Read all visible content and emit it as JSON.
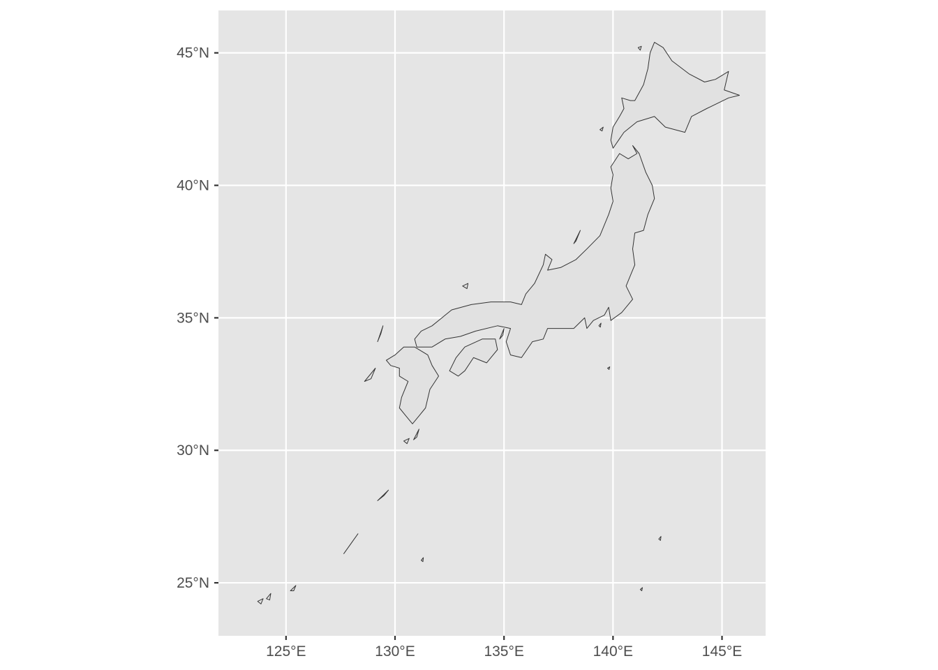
{
  "map": {
    "projection": "longitude-latitude",
    "colors": {
      "panel_background": "#e5e5e5",
      "gridline": "#ffffff",
      "land_fill": "#e1e1e1",
      "coastline": "#333333",
      "tick_text": "#4d4d4d",
      "tick_mark": "#333333"
    },
    "grid": true,
    "axis_ranges": {
      "lon": [
        121.9,
        147.0
      ],
      "lat": [
        23.0,
        46.6
      ]
    },
    "x_axis": {
      "ticks": [
        {
          "value": 125,
          "label": "125°E"
        },
        {
          "value": 130,
          "label": "130°E"
        },
        {
          "value": 135,
          "label": "135°E"
        },
        {
          "value": 140,
          "label": "140°E"
        },
        {
          "value": 145,
          "label": "145°E"
        }
      ]
    },
    "y_axis": {
      "ticks": [
        {
          "value": 25,
          "label": "25°N"
        },
        {
          "value": 30,
          "label": "30°N"
        },
        {
          "value": 35,
          "label": "35°N"
        },
        {
          "value": 40,
          "label": "40°N"
        },
        {
          "value": 45,
          "label": "45°N"
        }
      ]
    },
    "regions": [
      {
        "name": "Hokkaido",
        "coords": [
          [
            141.0,
            43.2
          ],
          [
            141.4,
            43.8
          ],
          [
            141.6,
            44.4
          ],
          [
            141.7,
            45.0
          ],
          [
            141.9,
            45.4
          ],
          [
            142.3,
            45.2
          ],
          [
            142.7,
            44.7
          ],
          [
            143.5,
            44.2
          ],
          [
            144.2,
            43.9
          ],
          [
            144.7,
            44.0
          ],
          [
            145.3,
            44.3
          ],
          [
            145.1,
            43.6
          ],
          [
            145.8,
            43.4
          ],
          [
            145.3,
            43.3
          ],
          [
            144.3,
            42.9
          ],
          [
            143.6,
            42.6
          ],
          [
            143.3,
            42.0
          ],
          [
            142.4,
            42.2
          ],
          [
            141.9,
            42.6
          ],
          [
            141.1,
            42.4
          ],
          [
            140.5,
            42.0
          ],
          [
            140.0,
            41.4
          ],
          [
            139.9,
            41.7
          ],
          [
            140.0,
            42.2
          ],
          [
            140.3,
            42.6
          ],
          [
            140.5,
            42.9
          ],
          [
            140.4,
            43.3
          ],
          [
            140.8,
            43.2
          ],
          [
            141.0,
            43.2
          ]
        ]
      },
      {
        "name": "Honshu",
        "coords": [
          [
            140.9,
            41.5
          ],
          [
            141.2,
            41.2
          ],
          [
            141.5,
            40.5
          ],
          [
            141.8,
            40.0
          ],
          [
            141.9,
            39.5
          ],
          [
            141.6,
            38.9
          ],
          [
            141.4,
            38.3
          ],
          [
            141.0,
            38.2
          ],
          [
            140.9,
            37.6
          ],
          [
            141.0,
            37.0
          ],
          [
            140.8,
            36.6
          ],
          [
            140.6,
            36.2
          ],
          [
            140.9,
            35.7
          ],
          [
            140.4,
            35.2
          ],
          [
            139.9,
            34.9
          ],
          [
            139.8,
            35.4
          ],
          [
            139.6,
            35.1
          ],
          [
            139.1,
            34.9
          ],
          [
            138.8,
            34.6
          ],
          [
            138.7,
            35.0
          ],
          [
            138.2,
            34.6
          ],
          [
            137.0,
            34.6
          ],
          [
            136.8,
            34.2
          ],
          [
            136.3,
            34.1
          ],
          [
            135.8,
            33.5
          ],
          [
            135.3,
            33.6
          ],
          [
            135.1,
            34.1
          ],
          [
            135.3,
            34.6
          ],
          [
            134.7,
            34.7
          ],
          [
            133.7,
            34.5
          ],
          [
            133.0,
            34.3
          ],
          [
            132.3,
            34.2
          ],
          [
            131.7,
            33.9
          ],
          [
            131.0,
            33.9
          ],
          [
            130.9,
            34.2
          ],
          [
            131.2,
            34.5
          ],
          [
            131.7,
            34.7
          ],
          [
            132.6,
            35.3
          ],
          [
            133.5,
            35.5
          ],
          [
            134.4,
            35.6
          ],
          [
            135.3,
            35.6
          ],
          [
            135.8,
            35.5
          ],
          [
            136.0,
            35.9
          ],
          [
            136.4,
            36.3
          ],
          [
            136.8,
            37.0
          ],
          [
            136.9,
            37.4
          ],
          [
            137.2,
            37.2
          ],
          [
            137.0,
            36.8
          ],
          [
            137.6,
            36.9
          ],
          [
            138.3,
            37.2
          ],
          [
            138.8,
            37.6
          ],
          [
            139.4,
            38.1
          ],
          [
            139.8,
            38.9
          ],
          [
            140.0,
            39.4
          ],
          [
            139.9,
            39.9
          ],
          [
            140.0,
            40.4
          ],
          [
            139.9,
            40.7
          ],
          [
            140.3,
            41.2
          ],
          [
            140.7,
            41.0
          ],
          [
            141.1,
            41.2
          ],
          [
            140.9,
            41.5
          ]
        ]
      },
      {
        "name": "Shikoku",
        "coords": [
          [
            132.5,
            33.0
          ],
          [
            132.8,
            33.5
          ],
          [
            133.2,
            33.9
          ],
          [
            134.0,
            34.2
          ],
          [
            134.6,
            34.2
          ],
          [
            134.7,
            33.8
          ],
          [
            134.2,
            33.3
          ],
          [
            133.6,
            33.5
          ],
          [
            133.2,
            33.0
          ],
          [
            132.9,
            32.8
          ],
          [
            132.5,
            33.0
          ]
        ]
      },
      {
        "name": "Kyushu",
        "coords": [
          [
            130.9,
            33.9
          ],
          [
            131.5,
            33.6
          ],
          [
            131.7,
            33.2
          ],
          [
            132.0,
            32.8
          ],
          [
            131.6,
            32.3
          ],
          [
            131.4,
            31.6
          ],
          [
            131.1,
            31.3
          ],
          [
            130.8,
            31.0
          ],
          [
            130.5,
            31.3
          ],
          [
            130.2,
            31.6
          ],
          [
            130.3,
            32.0
          ],
          [
            130.6,
            32.6
          ],
          [
            130.2,
            32.8
          ],
          [
            130.2,
            33.1
          ],
          [
            129.8,
            33.2
          ],
          [
            129.6,
            33.4
          ],
          [
            130.0,
            33.6
          ],
          [
            130.4,
            33.9
          ],
          [
            130.9,
            33.9
          ]
        ]
      },
      {
        "name": "Sado",
        "coords": [
          [
            138.2,
            37.8
          ],
          [
            138.5,
            38.3
          ],
          [
            138.4,
            38.1
          ],
          [
            138.3,
            37.9
          ],
          [
            138.2,
            37.8
          ]
        ]
      },
      {
        "name": "Okushiri",
        "coords": [
          [
            139.4,
            42.1
          ],
          [
            139.55,
            42.2
          ],
          [
            139.5,
            42.05
          ],
          [
            139.4,
            42.1
          ]
        ]
      },
      {
        "name": "Rishiri",
        "coords": [
          [
            141.15,
            45.2
          ],
          [
            141.3,
            45.25
          ],
          [
            141.25,
            45.1
          ],
          [
            141.15,
            45.2
          ]
        ]
      },
      {
        "name": "Oki",
        "coords": [
          [
            133.1,
            36.2
          ],
          [
            133.35,
            36.3
          ],
          [
            133.3,
            36.1
          ],
          [
            133.1,
            36.2
          ]
        ]
      },
      {
        "name": "Tsushima",
        "coords": [
          [
            129.2,
            34.1
          ],
          [
            129.45,
            34.7
          ],
          [
            129.35,
            34.4
          ],
          [
            129.2,
            34.1
          ]
        ]
      },
      {
        "name": "Goto",
        "coords": [
          [
            128.6,
            32.6
          ],
          [
            129.1,
            33.1
          ],
          [
            128.9,
            32.7
          ],
          [
            128.6,
            32.6
          ]
        ]
      },
      {
        "name": "Tanegashima",
        "coords": [
          [
            130.85,
            30.4
          ],
          [
            131.1,
            30.8
          ],
          [
            131.0,
            30.5
          ],
          [
            130.85,
            30.4
          ]
        ]
      },
      {
        "name": "Yakushima",
        "coords": [
          [
            130.4,
            30.35
          ],
          [
            130.65,
            30.45
          ],
          [
            130.55,
            30.25
          ],
          [
            130.4,
            30.35
          ]
        ]
      },
      {
        "name": "Amami",
        "coords": [
          [
            129.2,
            28.1
          ],
          [
            129.7,
            28.5
          ],
          [
            129.5,
            28.3
          ],
          [
            129.2,
            28.1
          ]
        ]
      },
      {
        "name": "Okinawa",
        "coords": [
          [
            127.65,
            26.1
          ],
          [
            128.3,
            26.85
          ],
          [
            128.0,
            26.5
          ],
          [
            127.65,
            26.1
          ]
        ]
      },
      {
        "name": "Ishigaki",
        "coords": [
          [
            124.1,
            24.4
          ],
          [
            124.3,
            24.6
          ],
          [
            124.25,
            24.35
          ],
          [
            124.1,
            24.4
          ]
        ]
      },
      {
        "name": "Iriomote",
        "coords": [
          [
            123.7,
            24.3
          ],
          [
            123.95,
            24.4
          ],
          [
            123.85,
            24.2
          ],
          [
            123.7,
            24.3
          ]
        ]
      },
      {
        "name": "Miyako",
        "coords": [
          [
            125.2,
            24.7
          ],
          [
            125.45,
            24.9
          ],
          [
            125.35,
            24.7
          ],
          [
            125.2,
            24.7
          ]
        ]
      },
      {
        "name": "Izu-Oshima",
        "coords": [
          [
            139.35,
            34.7
          ],
          [
            139.45,
            34.8
          ],
          [
            139.42,
            34.65
          ],
          [
            139.35,
            34.7
          ]
        ]
      },
      {
        "name": "Hachijojima",
        "coords": [
          [
            139.75,
            33.1
          ],
          [
            139.85,
            33.15
          ],
          [
            139.82,
            33.05
          ],
          [
            139.75,
            33.1
          ]
        ]
      },
      {
        "name": "Awaji",
        "coords": [
          [
            134.8,
            34.2
          ],
          [
            135.0,
            34.6
          ],
          [
            134.95,
            34.35
          ],
          [
            134.8,
            34.2
          ]
        ]
      },
      {
        "name": "Oki-Daito",
        "coords": [
          [
            131.2,
            25.85
          ],
          [
            131.3,
            25.95
          ],
          [
            131.28,
            25.8
          ],
          [
            131.2,
            25.85
          ]
        ]
      },
      {
        "name": "Iwo",
        "coords": [
          [
            141.25,
            24.75
          ],
          [
            141.35,
            24.82
          ],
          [
            141.32,
            24.7
          ],
          [
            141.25,
            24.75
          ]
        ]
      },
      {
        "name": "Ogasawara",
        "coords": [
          [
            142.1,
            26.65
          ],
          [
            142.2,
            26.75
          ],
          [
            142.18,
            26.6
          ],
          [
            142.1,
            26.65
          ]
        ]
      }
    ]
  }
}
